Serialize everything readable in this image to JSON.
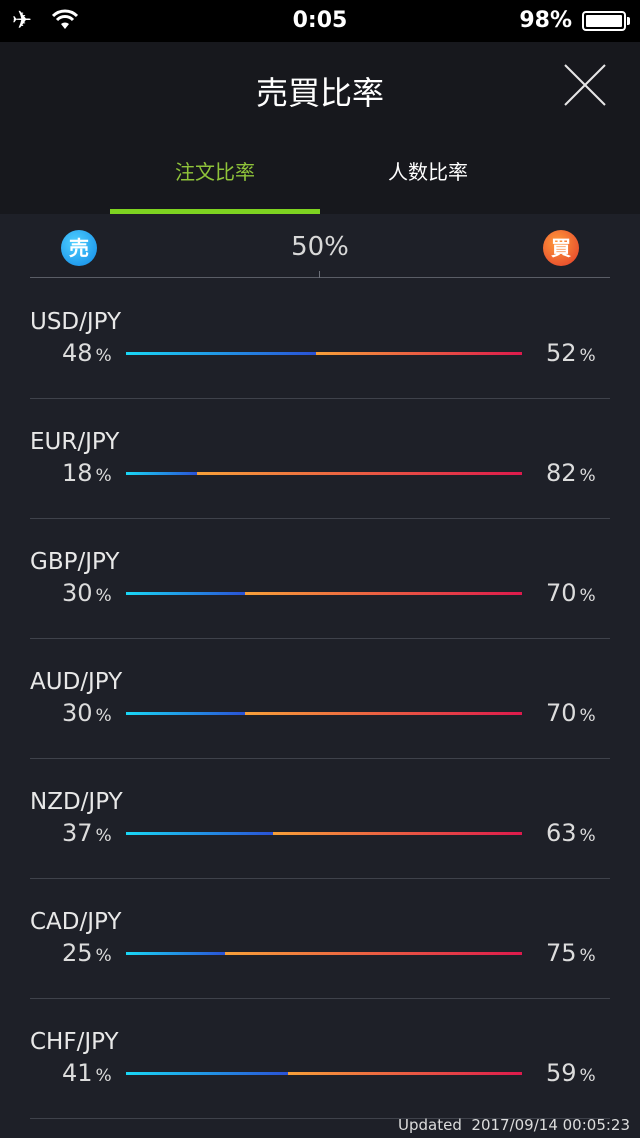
{
  "status_bar": {
    "time": "0:05",
    "battery": "98%"
  },
  "header": {
    "title": "売買比率",
    "tabs": [
      {
        "label": "注文比率",
        "active": true
      },
      {
        "label": "人数比率",
        "active": false
      }
    ]
  },
  "scale": {
    "sell_badge": "売",
    "buy_badge": "買",
    "mid_label": "50%"
  },
  "pct_sign": "%",
  "pairs": [
    {
      "name": "USD/JPY",
      "sell": "48",
      "buy": "52"
    },
    {
      "name": "EUR/JPY",
      "sell": "18",
      "buy": "82"
    },
    {
      "name": "GBP/JPY",
      "sell": "30",
      "buy": "70"
    },
    {
      "name": "AUD/JPY",
      "sell": "30",
      "buy": "70"
    },
    {
      "name": "NZD/JPY",
      "sell": "37",
      "buy": "63"
    },
    {
      "name": "CAD/JPY",
      "sell": "25",
      "buy": "75"
    },
    {
      "name": "CHF/JPY",
      "sell": "41",
      "buy": "59"
    }
  ],
  "updated": {
    "label": "Updated",
    "timestamp": "2017/09/14 00:05:23"
  },
  "colors": {
    "tab_active": "#8fc33a",
    "sell_start": "#19d7f5",
    "sell_end": "#2a52d6",
    "buy_start": "#f7a039",
    "buy_end": "#dd1a4c"
  }
}
